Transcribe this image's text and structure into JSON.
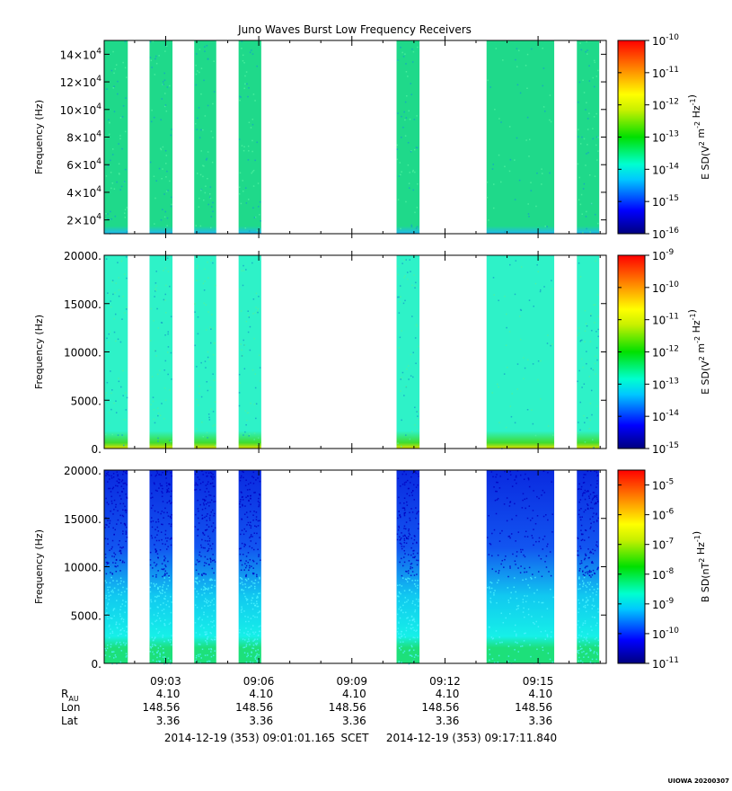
{
  "chart_data": [
    {
      "type": "heatmap",
      "title": "Juno Waves Burst Low Frequency Receivers",
      "ylabel": "Frequency (Hz)",
      "yticks": [
        {
          "value": 20000,
          "base": "2×10",
          "exp": "4"
        },
        {
          "value": 40000,
          "base": "4×10",
          "exp": "4"
        },
        {
          "value": 60000,
          "base": "6×10",
          "exp": "4"
        },
        {
          "value": 80000,
          "base": "8×10",
          "exp": "4"
        },
        {
          "value": 100000,
          "base": "10×10",
          "exp": "4"
        },
        {
          "value": 120000,
          "base": "12×10",
          "exp": "4"
        },
        {
          "value": 140000,
          "base": "14×10",
          "exp": "4"
        }
      ],
      "ylim": [
        10000,
        150000
      ],
      "colorbar": {
        "label_parts": [
          [
            "E SD(V",
            ""
          ],
          [
            "2",
            "sup"
          ],
          [
            " m",
            ""
          ],
          [
            "-2",
            "sup"
          ],
          [
            " Hz",
            ""
          ],
          [
            "-1",
            "sup"
          ],
          [
            ")",
            ""
          ]
        ],
        "ticks": [
          {
            "base": "10",
            "exp": "-10"
          },
          {
            "base": "10",
            "exp": "-11"
          },
          {
            "base": "10",
            "exp": "-12"
          },
          {
            "base": "10",
            "exp": "-13"
          },
          {
            "base": "10",
            "exp": "-14"
          },
          {
            "base": "10",
            "exp": "-15"
          },
          {
            "base": "10",
            "exp": "-16"
          }
        ],
        "log_range": [
          -16,
          -10
        ]
      },
      "fill_color": "#1fd98a",
      "low_band_color": "#22b8f0"
    },
    {
      "type": "heatmap",
      "ylabel": "Frequency (Hz)",
      "yticks": [
        {
          "value": 0,
          "base": "0.",
          "exp": ""
        },
        {
          "value": 5000,
          "base": "5000.",
          "exp": ""
        },
        {
          "value": 10000,
          "base": "10000.",
          "exp": ""
        },
        {
          "value": 15000,
          "base": "15000.",
          "exp": ""
        },
        {
          "value": 20000,
          "base": "20000.",
          "exp": ""
        }
      ],
      "ylim": [
        0,
        20000
      ],
      "colorbar": {
        "label_parts": [
          [
            "E SD(V",
            ""
          ],
          [
            "2",
            "sup"
          ],
          [
            " m",
            ""
          ],
          [
            "-2",
            "sup"
          ],
          [
            " Hz",
            ""
          ],
          [
            "-1",
            "sup"
          ],
          [
            ")",
            ""
          ]
        ],
        "ticks": [
          {
            "base": "10",
            "exp": "-9"
          },
          {
            "base": "10",
            "exp": "-10"
          },
          {
            "base": "10",
            "exp": "-11"
          },
          {
            "base": "10",
            "exp": "-12"
          },
          {
            "base": "10",
            "exp": "-13"
          },
          {
            "base": "10",
            "exp": "-14"
          },
          {
            "base": "10",
            "exp": "-15"
          }
        ],
        "log_range": [
          -15,
          -9
        ]
      },
      "fill_color": "#2ef2c8",
      "low_band_color": "#e8e000"
    },
    {
      "type": "heatmap",
      "ylabel": "Frequency (Hz)",
      "yticks": [
        {
          "value": 0,
          "base": "0.",
          "exp": ""
        },
        {
          "value": 5000,
          "base": "5000.",
          "exp": ""
        },
        {
          "value": 10000,
          "base": "10000.",
          "exp": ""
        },
        {
          "value": 15000,
          "base": "15000.",
          "exp": ""
        },
        {
          "value": 20000,
          "base": "20000.",
          "exp": ""
        }
      ],
      "ylim": [
        0,
        20000
      ],
      "colorbar": {
        "label_parts": [
          [
            "B SD(nT",
            ""
          ],
          [
            "2",
            "sup"
          ],
          [
            " Hz",
            ""
          ],
          [
            "-1",
            "sup"
          ],
          [
            ")",
            ""
          ]
        ],
        "ticks": [
          {
            "base": "10",
            "exp": "-5"
          },
          {
            "base": "10",
            "exp": "-6"
          },
          {
            "base": "10",
            "exp": "-7"
          },
          {
            "base": "10",
            "exp": "-8"
          },
          {
            "base": "10",
            "exp": "-9"
          },
          {
            "base": "10",
            "exp": "-10"
          },
          {
            "base": "10",
            "exp": "-11"
          }
        ],
        "log_range": [
          -11,
          -4.5
        ]
      },
      "fill_color": "#0a2ae0",
      "low_band_color": "#1de07a"
    }
  ],
  "time_axis": {
    "start_label": "2014-12-19 (353) 09:01:01.165",
    "scet_label": "SCET",
    "end_label": "2014-12-19 (353) 09:17:11.840",
    "xlim_min": [
      61.019,
      77.197
    ],
    "ticks": [
      {
        "label": "09:03",
        "t": 63
      },
      {
        "label": "09:06",
        "t": 66
      },
      {
        "label": "09:09",
        "t": 69
      },
      {
        "label": "09:12",
        "t": 72
      },
      {
        "label": "09:15",
        "t": 75
      }
    ],
    "minor_ticks": [
      62,
      64,
      65,
      67,
      68,
      70,
      71,
      73,
      74,
      76,
      77
    ],
    "data_intervals_min": [
      [
        61.03,
        61.78
      ],
      [
        62.48,
        63.22
      ],
      [
        63.92,
        64.63
      ],
      [
        65.35,
        66.08
      ],
      [
        70.44,
        71.18
      ],
      [
        73.34,
        75.52
      ],
      [
        76.25,
        76.97
      ]
    ]
  },
  "ephemeris": {
    "row_labels": [
      "R",
      "Lon",
      "Lat"
    ],
    "r_subscript": "AU",
    "rows": [
      [
        "4.10",
        "4.10",
        "4.10",
        "4.10",
        "4.10"
      ],
      [
        "148.56",
        "148.56",
        "148.56",
        "148.56",
        "148.56"
      ],
      [
        "3.36",
        "3.36",
        "3.36",
        "3.36",
        "3.36"
      ]
    ]
  },
  "footer_stamp": "UIOWA 20200307"
}
